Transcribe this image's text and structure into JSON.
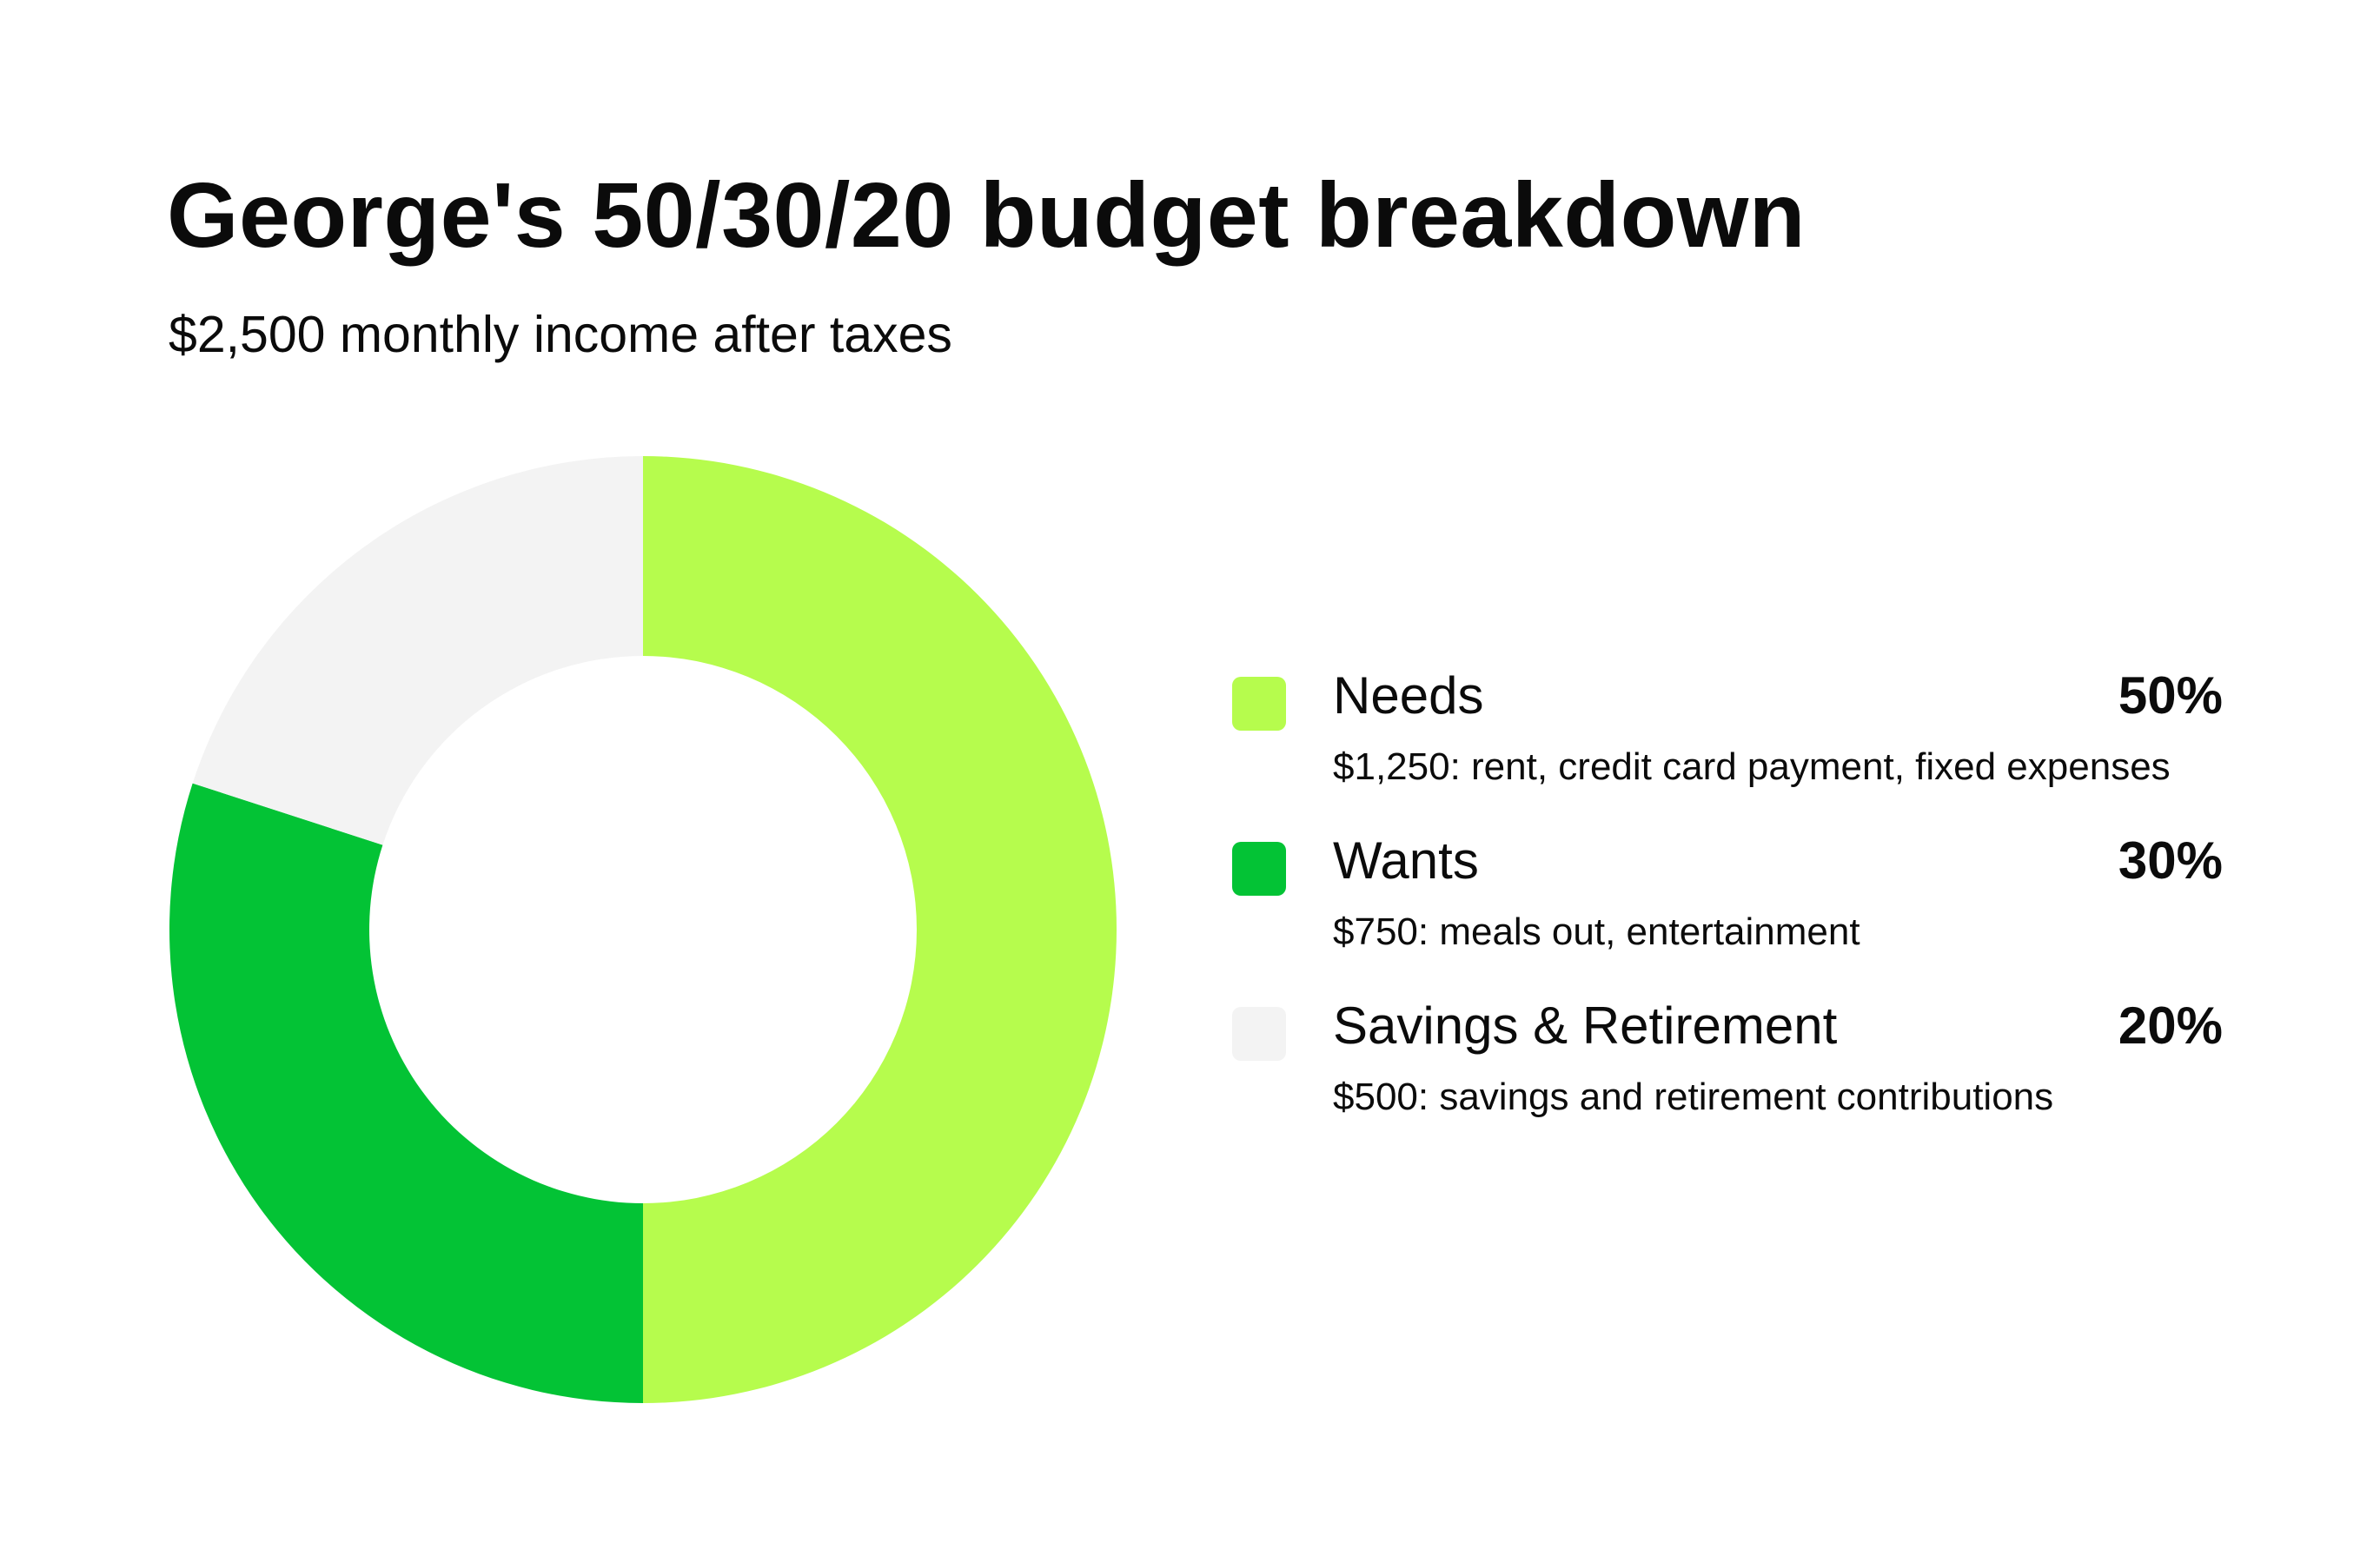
{
  "title": "George's 50/30/20 budget breakdown",
  "subtitle": "$2,500 monthly income after taxes",
  "legend": [
    {
      "label": "Needs",
      "percent": "50%",
      "description": "$1,250: rent, credit card payment, fixed expenses",
      "color": "#b6fc4d"
    },
    {
      "label": "Wants",
      "percent": "30%",
      "description": "$750: meals out, entertainment",
      "color": "#03c335"
    },
    {
      "label": "Savings & Retirement",
      "percent": "20%",
      "description": "$500: savings and retirement contributions",
      "color": "#f3f3f3"
    }
  ],
  "chart_data": {
    "type": "pie",
    "categories": [
      "Needs",
      "Wants",
      "Savings & Retirement"
    ],
    "values": [
      50,
      30,
      20
    ],
    "colors": [
      "#b6fc4d",
      "#03c335",
      "#f3f3f3"
    ],
    "title": "George's 50/30/20 budget breakdown",
    "subtitle": "$2,500 monthly income after taxes"
  }
}
